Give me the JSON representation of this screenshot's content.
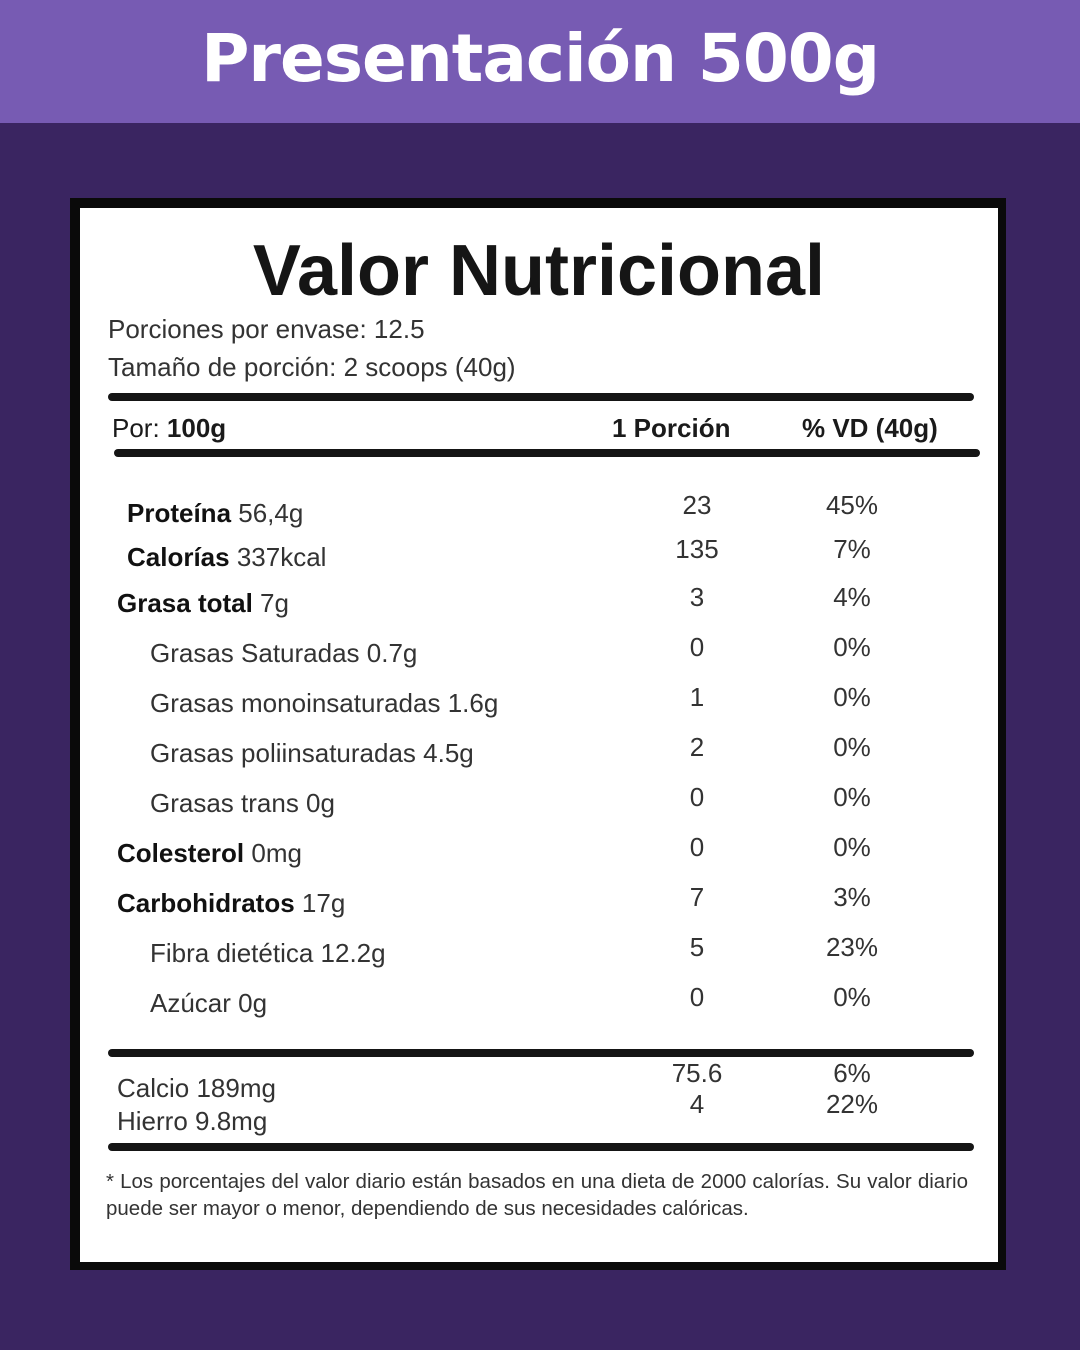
{
  "banner": {
    "title": "Presentación 500g"
  },
  "label": {
    "title": "Valor Nutricional",
    "servings_per_container": "Porciones por envase: 12.5",
    "serving_size": "Tamaño de porción: 2 scoops (40g)",
    "header": {
      "per_label": "Por:",
      "per_value": "100g",
      "col_portion": "1 Porción",
      "col_dv": "% VD (40g)"
    },
    "nutrients": [
      {
        "bold": "Proteína",
        "rest": " 56,4g",
        "portion": "23",
        "dv": "45%",
        "level": 1
      },
      {
        "bold": "Calorías",
        "rest": " 337kcal",
        "portion": "135",
        "dv": "7%",
        "level": 1
      },
      {
        "bold": "Grasa total",
        "rest": " 7g",
        "portion": "3",
        "dv": "4%",
        "level": 2
      },
      {
        "bold": "",
        "rest": "Grasas Saturadas 0.7g",
        "portion": "0",
        "dv": "0%",
        "level": 3
      },
      {
        "bold": "",
        "rest": "Grasas monoinsaturadas 1.6g",
        "portion": "1",
        "dv": "0%",
        "level": 3
      },
      {
        "bold": "",
        "rest": "Grasas poliinsaturadas 4.5g",
        "portion": "2",
        "dv": "0%",
        "level": 3
      },
      {
        "bold": "",
        "rest": "Grasas trans 0g",
        "portion": "0",
        "dv": "0%",
        "level": 3
      },
      {
        "bold": "Colesterol",
        "rest": " 0mg",
        "portion": "0",
        "dv": "0%",
        "level": 2
      },
      {
        "bold": "Carbohidratos",
        "rest": " 17g",
        "portion": "7",
        "dv": "3%",
        "level": 2
      },
      {
        "bold": "",
        "rest": "Fibra dietética 12.2g",
        "portion": "5",
        "dv": "23%",
        "level": 3
      },
      {
        "bold": "",
        "rest": "Azúcar 0g",
        "portion": "0",
        "dv": "0%",
        "level": 3
      }
    ],
    "minerals": [
      {
        "name": "Calcio  189mg",
        "portion": "75.6",
        "dv": "6%"
      },
      {
        "name": "Hierro 9.8mg",
        "portion": "4",
        "dv": "22%"
      }
    ],
    "footnote": "* Los porcentajes del valor diario están basados en una dieta de 2000 calorías. Su valor diario puede ser mayor o menor, dependiendo de sus necesidades calóricas."
  },
  "colors": {
    "banner": "#775bb3",
    "background": "#3a2561",
    "label_border": "#0a0a0a"
  }
}
